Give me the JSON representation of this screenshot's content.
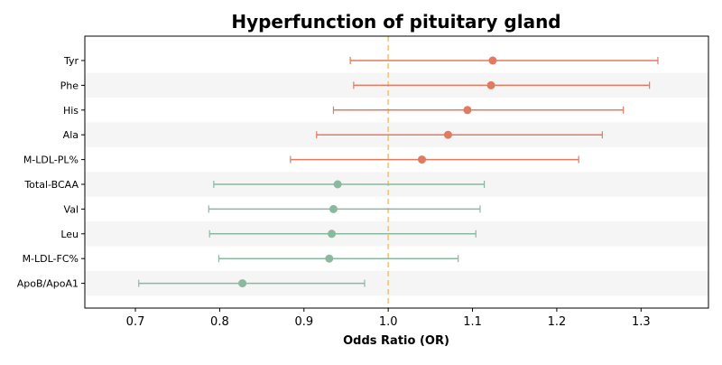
{
  "chart_data": {
    "type": "forest",
    "title": "Hyperfunction of pituitary gland",
    "xlabel": "Odds Ratio (OR)",
    "ylabel": "",
    "xlim": [
      0.64,
      1.38
    ],
    "xticks": [
      "0.7",
      "0.8",
      "0.9",
      "1.0",
      "1.1",
      "1.2",
      "1.3"
    ],
    "reference_line": 1.0,
    "grid": false,
    "row_banding": true,
    "colors": {
      "increase": "#e07b61",
      "decrease": "#8ab9a0",
      "reference": "#f3c98a",
      "band": "#f5f5f5"
    },
    "rows": [
      {
        "label": "Tyr",
        "or": 1.124,
        "lower": 0.955,
        "upper": 1.32
      },
      {
        "label": "Phe",
        "or": 1.122,
        "lower": 0.959,
        "upper": 1.31
      },
      {
        "label": "His",
        "or": 1.094,
        "lower": 0.935,
        "upper": 1.279
      },
      {
        "label": "Ala",
        "or": 1.071,
        "lower": 0.915,
        "upper": 1.254
      },
      {
        "label": "M-LDL-PL%",
        "or": 1.04,
        "lower": 0.884,
        "upper": 1.226
      },
      {
        "label": "Total-BCAA",
        "or": 0.94,
        "lower": 0.793,
        "upper": 1.114
      },
      {
        "label": "Val",
        "or": 0.935,
        "lower": 0.787,
        "upper": 1.109
      },
      {
        "label": "Leu",
        "or": 0.933,
        "lower": 0.788,
        "upper": 1.104
      },
      {
        "label": "M-LDL-FC%",
        "or": 0.93,
        "lower": 0.799,
        "upper": 1.083
      },
      {
        "label": "ApoB/ApoA1",
        "or": 0.827,
        "lower": 0.704,
        "upper": 0.972
      }
    ]
  }
}
